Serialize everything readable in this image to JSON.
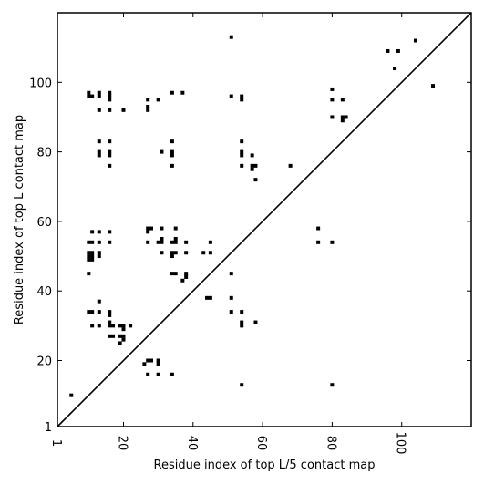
{
  "chart_data": {
    "type": "scatter",
    "title": "",
    "xlabel": "Residue index of top L/5 contact map",
    "ylabel": "Residue index of top L contact map",
    "xlim": [
      1,
      120
    ],
    "ylim": [
      1,
      120
    ],
    "x_ticks": [
      1,
      20,
      40,
      60,
      80,
      100
    ],
    "y_ticks": [
      1,
      20,
      40,
      60,
      80,
      100
    ],
    "grid": false,
    "diagonal": true,
    "colors": {
      "points": "#000000",
      "axes": "#000000",
      "background": "#ffffff"
    },
    "points": [
      [
        5,
        10
      ],
      [
        10,
        96
      ],
      [
        10,
        97
      ],
      [
        11,
        96
      ],
      [
        13,
        96
      ],
      [
        13,
        97
      ],
      [
        16,
        95
      ],
      [
        16,
        96
      ],
      [
        16,
        97
      ],
      [
        13,
        92
      ],
      [
        16,
        92
      ],
      [
        20,
        92
      ],
      [
        13,
        83
      ],
      [
        16,
        83
      ],
      [
        13,
        79
      ],
      [
        13,
        80
      ],
      [
        16,
        79
      ],
      [
        16,
        80
      ],
      [
        16,
        76
      ],
      [
        27,
        92
      ],
      [
        27,
        93
      ],
      [
        27,
        95
      ],
      [
        30,
        95
      ],
      [
        34,
        97
      ],
      [
        37,
        97
      ],
      [
        31,
        80
      ],
      [
        34,
        79
      ],
      [
        34,
        80
      ],
      [
        34,
        83
      ],
      [
        34,
        76
      ],
      [
        11,
        57
      ],
      [
        13,
        57
      ],
      [
        16,
        57
      ],
      [
        10,
        54
      ],
      [
        11,
        54
      ],
      [
        13,
        54
      ],
      [
        16,
        54
      ],
      [
        10,
        49
      ],
      [
        10,
        50
      ],
      [
        10,
        51
      ],
      [
        11,
        49
      ],
      [
        11,
        50
      ],
      [
        11,
        51
      ],
      [
        13,
        50
      ],
      [
        13,
        51
      ],
      [
        10,
        45
      ],
      [
        27,
        57
      ],
      [
        27,
        58
      ],
      [
        28,
        58
      ],
      [
        31,
        58
      ],
      [
        35,
        58
      ],
      [
        27,
        54
      ],
      [
        30,
        54
      ],
      [
        31,
        54
      ],
      [
        31,
        55
      ],
      [
        34,
        54
      ],
      [
        35,
        54
      ],
      [
        35,
        55
      ],
      [
        38,
        54
      ],
      [
        31,
        51
      ],
      [
        34,
        50
      ],
      [
        34,
        51
      ],
      [
        35,
        51
      ],
      [
        38,
        51
      ],
      [
        34,
        45
      ],
      [
        35,
        45
      ],
      [
        38,
        44
      ],
      [
        38,
        45
      ],
      [
        37,
        43
      ],
      [
        43,
        51
      ],
      [
        45,
        51
      ],
      [
        45,
        54
      ],
      [
        44,
        38
      ],
      [
        45,
        38
      ],
      [
        13,
        37
      ],
      [
        10,
        34
      ],
      [
        11,
        34
      ],
      [
        13,
        34
      ],
      [
        16,
        33
      ],
      [
        16,
        34
      ],
      [
        11,
        30
      ],
      [
        13,
        30
      ],
      [
        16,
        30
      ],
      [
        16,
        31
      ],
      [
        17,
        30
      ],
      [
        19,
        30
      ],
      [
        20,
        30
      ],
      [
        22,
        30
      ],
      [
        20,
        29
      ],
      [
        16,
        27
      ],
      [
        17,
        27
      ],
      [
        19,
        27
      ],
      [
        20,
        26
      ],
      [
        20,
        27
      ],
      [
        19,
        25
      ],
      [
        26,
        19
      ],
      [
        27,
        20
      ],
      [
        28,
        20
      ],
      [
        30,
        19
      ],
      [
        30,
        20
      ],
      [
        27,
        16
      ],
      [
        30,
        16
      ],
      [
        34,
        16
      ],
      [
        51,
        113
      ],
      [
        51,
        96
      ],
      [
        54,
        95
      ],
      [
        54,
        96
      ],
      [
        54,
        83
      ],
      [
        54,
        79
      ],
      [
        54,
        80
      ],
      [
        57,
        79
      ],
      [
        54,
        76
      ],
      [
        57,
        75
      ],
      [
        57,
        76
      ],
      [
        58,
        76
      ],
      [
        58,
        72
      ],
      [
        68,
        76
      ],
      [
        51,
        45
      ],
      [
        51,
        38
      ],
      [
        51,
        34
      ],
      [
        54,
        34
      ],
      [
        54,
        30
      ],
      [
        54,
        31
      ],
      [
        58,
        31
      ],
      [
        54,
        13
      ],
      [
        76,
        58
      ],
      [
        76,
        54
      ],
      [
        80,
        54
      ],
      [
        80,
        13
      ],
      [
        80,
        98
      ],
      [
        80,
        95
      ],
      [
        83,
        95
      ],
      [
        80,
        90
      ],
      [
        83,
        89
      ],
      [
        83,
        90
      ],
      [
        84,
        90
      ],
      [
        96,
        109
      ],
      [
        99,
        109
      ],
      [
        104,
        112
      ],
      [
        98,
        104
      ],
      [
        109,
        99
      ]
    ]
  }
}
